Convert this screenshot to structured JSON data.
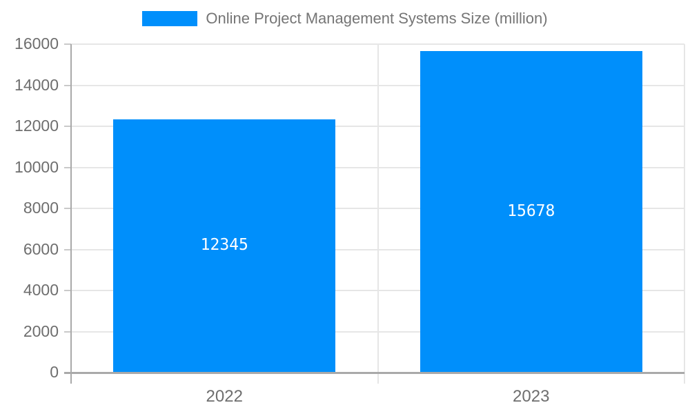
{
  "chart_data": {
    "type": "bar",
    "title": "Online Project Management Systems Size (million)",
    "categories": [
      "2022",
      "2023"
    ],
    "series": [
      {
        "name": "Online Project Management Systems Size (million)",
        "values": [
          12345,
          15678
        ]
      }
    ],
    "bar_value_labels": [
      "12345",
      "15678"
    ],
    "xlabel": "",
    "ylabel": "",
    "ylim": [
      0,
      16000
    ],
    "yticks": [
      0,
      2000,
      4000,
      6000,
      8000,
      10000,
      12000,
      14000,
      16000
    ],
    "grid": true,
    "legend_position": "top-center",
    "colors": {
      "bar": "#008FFB",
      "bar_label": "#FFFFFF",
      "legend_text": "#757575",
      "axis_label": "#6E6E6E",
      "gridline": "#E6E6E6",
      "axis_line": "#A9A9A9",
      "tick": "#C9C9C9",
      "background": "#FFFFFF"
    }
  }
}
